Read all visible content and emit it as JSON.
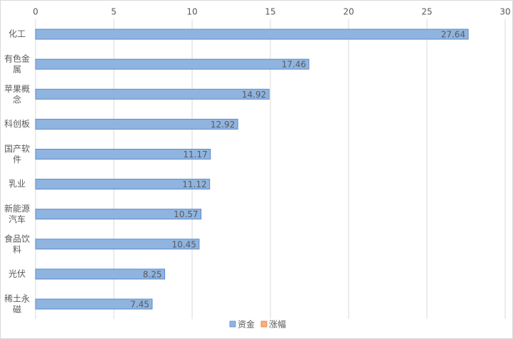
{
  "chart_data": {
    "type": "bar",
    "orientation": "horizontal",
    "categories": [
      "化工",
      "有色金属",
      "苹果概念",
      "科创板",
      "国产软件",
      "乳业",
      "新能源汽车",
      "食品饮料",
      "光伏",
      "稀土永磁"
    ],
    "series": [
      {
        "name": "资金",
        "color": "#8fb4e0",
        "values": [
          27.64,
          17.46,
          14.92,
          12.92,
          11.17,
          11.12,
          10.57,
          10.45,
          8.25,
          7.45
        ]
      },
      {
        "name": "涨幅",
        "color": "#f4b183",
        "values": [
          null,
          null,
          null,
          null,
          null,
          null,
          null,
          null,
          null,
          null
        ]
      }
    ],
    "xlim": [
      0,
      30
    ],
    "xticks": [
      0,
      5,
      10,
      15,
      20,
      25,
      30
    ],
    "grid": true,
    "legend": "bottom"
  }
}
